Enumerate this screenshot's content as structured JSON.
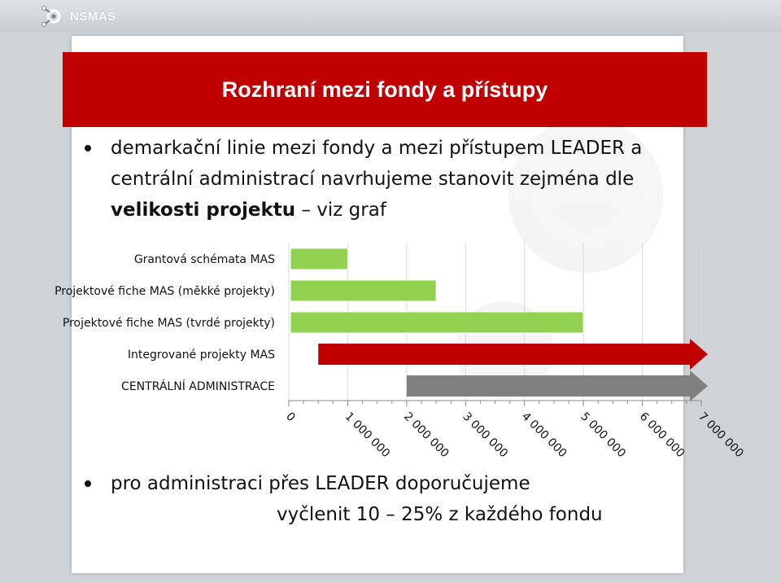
{
  "header": {
    "logo_text": "NSMAS",
    "logo_icon": "gear-network-icon"
  },
  "slide": {
    "title": "Rozhraní mezi fondy a přístupy",
    "bullet1_part1": "demarkační linie mezi fondy a mezi přístupem LEADER a centrální administrací navrhujeme stanovit zejména dle ",
    "bullet1_bold": "velikosti projektu",
    "bullet1_part2": " – viz graf",
    "bullet2_line1": "pro administraci přes LEADER doporučujeme",
    "bullet2_line2": "vyčlenit 10 – 25% z každého fondu"
  },
  "colors": {
    "title_bg": "#c00000",
    "green_bar": "#92d050",
    "red_arrow": "#c00000",
    "gray_arrow": "#808080"
  },
  "chart_data": {
    "type": "bar",
    "orientation": "horizontal",
    "categories": [
      "Grantová schémata MAS",
      "Projektové fiche MAS (měkké projekty)",
      "Projektové fiche MAS (tvrdé projekty)",
      "Integrované projekty MAS",
      "CENTRÁLNÍ ADMINISTRACE"
    ],
    "ranges": [
      {
        "start": 0,
        "end": 1000000,
        "style": "bar",
        "color": "#92d050"
      },
      {
        "start": 0,
        "end": 2500000,
        "style": "bar",
        "color": "#92d050"
      },
      {
        "start": 0,
        "end": 5000000,
        "style": "bar",
        "color": "#92d050"
      },
      {
        "start": 500000,
        "end": 7000000,
        "style": "arrow",
        "color": "#c00000"
      },
      {
        "start": 2000000,
        "end": 7000000,
        "style": "arrow",
        "color": "#808080"
      }
    ],
    "xlim": [
      0,
      7000000
    ],
    "xticks": [
      0,
      1000000,
      2000000,
      3000000,
      4000000,
      5000000,
      6000000,
      7000000
    ],
    "xtick_labels": [
      "0",
      "1 000 000",
      "2 000 000",
      "3 000 000",
      "4 000 000",
      "5 000 000",
      "6 000 000",
      "7 000 000"
    ],
    "grid": true,
    "xlabel": "",
    "ylabel": ""
  }
}
